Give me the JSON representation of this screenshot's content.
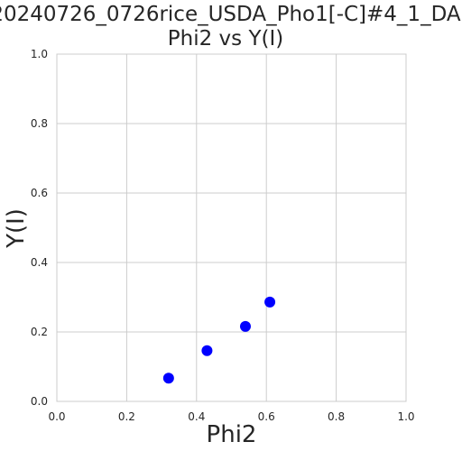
{
  "chart_data": {
    "type": "scatter",
    "title_line1": "20240726_0726rice_USDA_Pho1[-C]#4_1_DA",
    "title_line2": "Phi2 vs Y(I)",
    "xlabel": "Phi2",
    "ylabel": "Y(I)",
    "xlim": [
      0.0,
      1.0
    ],
    "ylim": [
      0.0,
      1.0
    ],
    "xticks": [
      "0.0",
      "0.2",
      "0.4",
      "0.6",
      "0.8",
      "1.0"
    ],
    "yticks": [
      "0.0",
      "0.2",
      "0.4",
      "0.6",
      "0.8",
      "1.0"
    ],
    "grid": true,
    "point_color": "#0000ff",
    "points": [
      {
        "x": 0.32,
        "y": 0.067
      },
      {
        "x": 0.43,
        "y": 0.146
      },
      {
        "x": 0.54,
        "y": 0.216
      },
      {
        "x": 0.61,
        "y": 0.286
      }
    ]
  }
}
